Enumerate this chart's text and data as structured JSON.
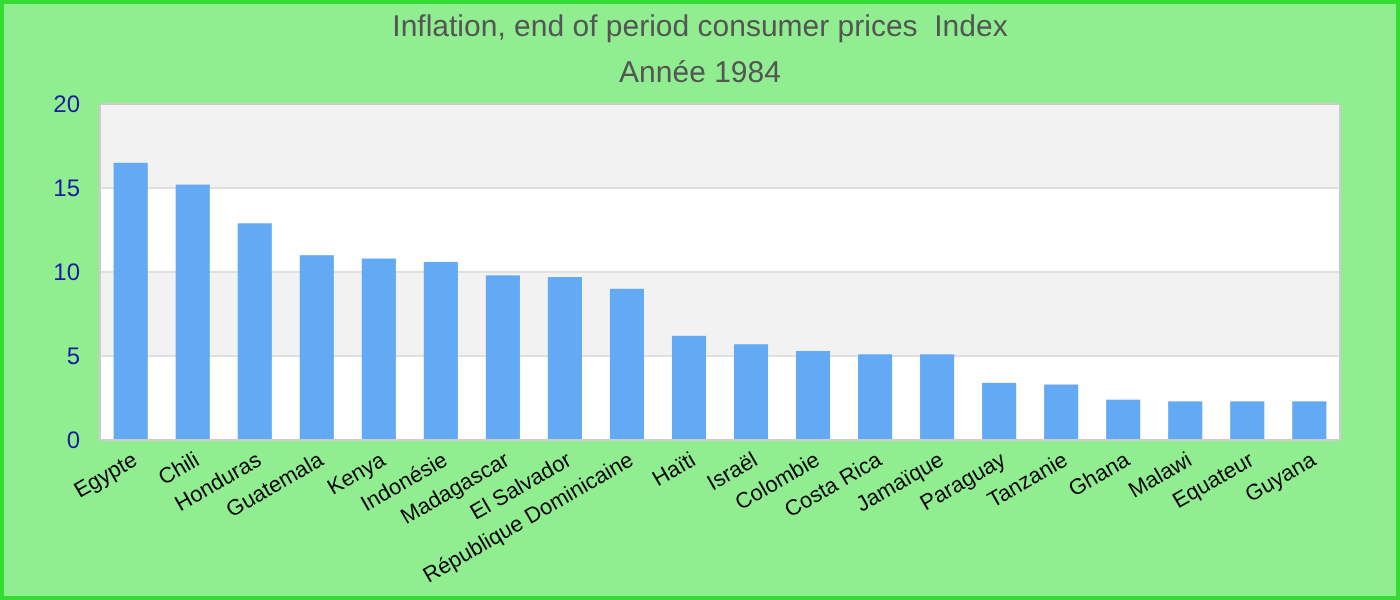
{
  "chart_data": {
    "type": "bar",
    "title": "Inflation, end of period consumer prices  Index",
    "subtitle": "Année 1984",
    "categories": [
      "Egypte",
      "Chili",
      "Honduras",
      "Guatemala",
      "Kenya",
      "Indonésie",
      "Madagascar",
      "El Salvador",
      "République Dominicaine",
      "Haïti",
      "Israël",
      "Colombie",
      "Costa Rica",
      "Jamaïque",
      "Paraguay",
      "Tanzanie",
      "Ghana",
      "Malawi",
      "Equateur",
      "Guyana"
    ],
    "values": [
      16.5,
      15.2,
      12.9,
      11.0,
      10.8,
      10.6,
      9.8,
      9.7,
      9.0,
      6.2,
      5.7,
      5.3,
      5.1,
      5.1,
      3.4,
      3.3,
      2.4,
      2.3,
      2.3,
      2.3
    ],
    "color": "#63a9f3",
    "ylim": [
      0,
      20
    ],
    "yticks": [
      0,
      5,
      10,
      15,
      20
    ],
    "grid": "y"
  }
}
